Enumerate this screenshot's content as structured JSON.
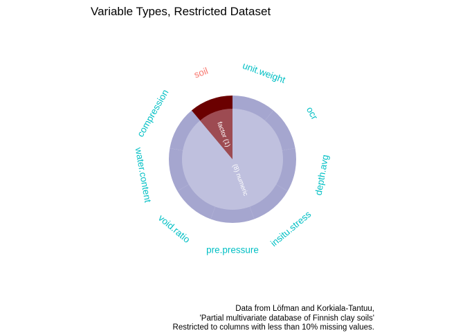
{
  "title": "Variable Types, Restricted Dataset",
  "caption": [
    "Data from Löfman and Korkiala-Tantuu,",
    "'Partial multivariate database of Finnish clay soils'",
    "Restricted to columns with less than 10% missing values."
  ],
  "chart_data": {
    "type": "pie",
    "title": "Variable Types, Restricted Dataset",
    "inner_ring": [
      {
        "label": "(8) numeric",
        "count": 8,
        "color": "#bfc0de"
      },
      {
        "label": "factor (1)",
        "count": 1,
        "color": "#9d4b52"
      }
    ],
    "outer_ring": [
      {
        "variable": "unit.weight",
        "type": "numeric",
        "color": "#a5a6cf",
        "label_color": "#00bfc4"
      },
      {
        "variable": "ocr",
        "type": "numeric",
        "color": "#a5a6cf",
        "label_color": "#00bfc4"
      },
      {
        "variable": "depth.avg",
        "type": "numeric",
        "color": "#a5a6cf",
        "label_color": "#00bfc4"
      },
      {
        "variable": "insitu.stress",
        "type": "numeric",
        "color": "#a5a6cf",
        "label_color": "#00bfc4"
      },
      {
        "variable": "pre.pressure",
        "type": "numeric",
        "color": "#a5a6cf",
        "label_color": "#00bfc4"
      },
      {
        "variable": "void.ratio",
        "type": "numeric",
        "color": "#a5a6cf",
        "label_color": "#00bfc4"
      },
      {
        "variable": "water.content",
        "type": "numeric",
        "color": "#a5a6cf",
        "label_color": "#00bfc4"
      },
      {
        "variable": "compression",
        "type": "numeric",
        "color": "#a5a6cf",
        "label_color": "#00bfc4"
      },
      {
        "variable": "soil",
        "type": "factor",
        "color": "#6b0000",
        "label_color": "#f8766d"
      }
    ]
  }
}
